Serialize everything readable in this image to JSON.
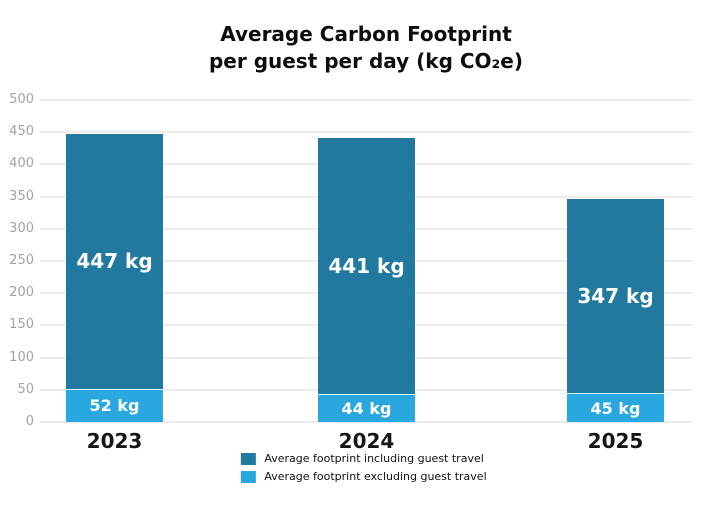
{
  "title": {
    "line1": "Average Carbon Footprint",
    "line2": "per guest per day (kg CO₂e)"
  },
  "chart_data": {
    "type": "bar",
    "title": "Average Carbon Footprint per guest per day (kg CO₂e)",
    "categories": [
      "2023",
      "2024",
      "2025"
    ],
    "series": [
      {
        "name": "Average footprint including guest travel",
        "color": "#21799f",
        "values": [
          447,
          441,
          347
        ],
        "value_labels": [
          "447 kg",
          "441 kg",
          "347 kg"
        ]
      },
      {
        "name": "Average footprint excluding guest travel",
        "color": "#29a8e0",
        "values": [
          52,
          44,
          45
        ],
        "value_labels": [
          "52 kg",
          "44 kg",
          "45 kg"
        ]
      }
    ],
    "bar_mode": "overlay",
    "ylim": [
      0,
      500
    ],
    "yticks": [
      0,
      50,
      100,
      150,
      200,
      250,
      300,
      350,
      400,
      450,
      500
    ],
    "grid": true,
    "legend_position": "bottom"
  },
  "colors": {
    "background": "#ffffff",
    "grid": "#ececec",
    "tick_label": "#a3a3a3",
    "title_text": "#0d0d0d",
    "bar_value_label": "#ffffff"
  }
}
